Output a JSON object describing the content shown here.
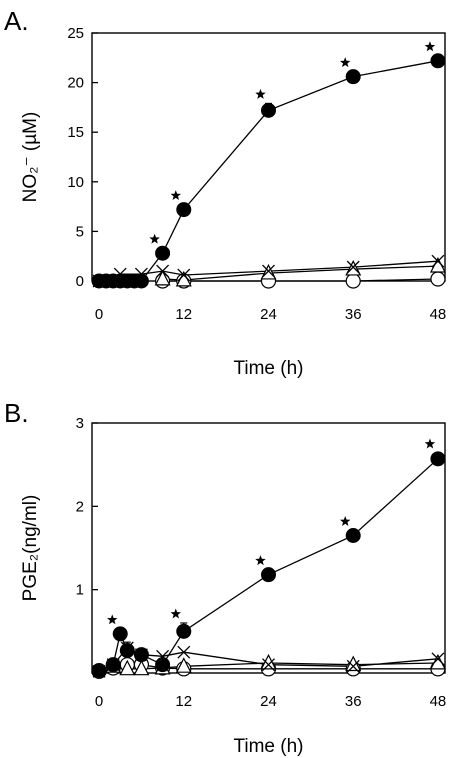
{
  "chart_data": [
    {
      "type": "line",
      "panel_label": "A.",
      "xlabel": "Time (h)",
      "ylabel": "NO₂⁻ (µM)",
      "xlim": [
        -1,
        49
      ],
      "ylim": [
        0,
        25
      ],
      "xticks": [
        0,
        12,
        24,
        36,
        48
      ],
      "yticks": [
        0,
        5,
        10,
        15,
        20,
        25
      ],
      "grid": false,
      "series": [
        {
          "marker": "filled-circle",
          "x": [
            0,
            1,
            2,
            3,
            4,
            5,
            6,
            9,
            12,
            24,
            36,
            48
          ],
          "y": [
            0,
            0,
            0,
            0,
            0,
            0,
            0,
            2.8,
            7.2,
            17.2,
            20.6,
            22.2
          ],
          "err": [
            0,
            0,
            0,
            0,
            0,
            0,
            0,
            0.3,
            0.3,
            0.7,
            0.3,
            0.3
          ],
          "sig": [
            false,
            false,
            false,
            false,
            false,
            false,
            false,
            true,
            true,
            true,
            true,
            true
          ]
        },
        {
          "marker": "cross",
          "x": [
            0,
            3,
            6,
            9,
            12,
            24,
            36,
            48
          ],
          "y": [
            0,
            0.7,
            0.7,
            1.0,
            0.6,
            1.0,
            1.4,
            2.0
          ]
        },
        {
          "marker": "open-triangle",
          "x": [
            9,
            12,
            24,
            36,
            48
          ],
          "y": [
            0.2,
            0.1,
            0.8,
            1.2,
            1.5
          ]
        },
        {
          "marker": "open-circle",
          "x": [
            9,
            12,
            24,
            36,
            48
          ],
          "y": [
            0,
            0,
            0,
            0,
            0.2
          ]
        }
      ]
    },
    {
      "type": "line",
      "panel_label": "B.",
      "xlabel": "Time (h)",
      "ylabel": "PGE₂(ng/ml)",
      "xlim": [
        -1,
        49
      ],
      "ylim": [
        0,
        3
      ],
      "xticks": [
        0,
        12,
        24,
        36,
        48
      ],
      "yticks": [
        1,
        2,
        3
      ],
      "grid": false,
      "series": [
        {
          "marker": "filled-circle",
          "x": [
            0,
            2,
            3,
            4,
            6,
            9,
            12,
            24,
            36,
            48
          ],
          "y": [
            0.03,
            0.1,
            0.47,
            0.27,
            0.22,
            0.1,
            0.5,
            1.18,
            1.65,
            2.57
          ],
          "err": [
            0,
            0,
            0.04,
            0.1,
            0.04,
            0.05,
            0.1,
            0.04,
            0.04,
            0.07
          ],
          "sig": [
            false,
            false,
            true,
            false,
            false,
            false,
            true,
            true,
            true,
            true
          ]
        },
        {
          "marker": "cross",
          "x": [
            0,
            2,
            4,
            6,
            9,
            12,
            24,
            36,
            48
          ],
          "y": [
            0.02,
            0.1,
            0.3,
            0.22,
            0.2,
            0.25,
            0.1,
            0.08,
            0.17
          ]
        },
        {
          "marker": "open-triangle",
          "x": [
            2,
            4,
            6,
            9,
            12,
            24,
            36,
            48
          ],
          "y": [
            0.08,
            0.05,
            0.05,
            0.06,
            0.08,
            0.12,
            0.1,
            0.12
          ]
        },
        {
          "marker": "open-circle",
          "x": [
            0,
            2,
            4,
            6,
            9,
            12,
            24,
            36,
            48
          ],
          "y": [
            0.02,
            0.06,
            0.1,
            0.1,
            0.06,
            0.05,
            0.05,
            0.05,
            0.05
          ]
        }
      ]
    }
  ]
}
